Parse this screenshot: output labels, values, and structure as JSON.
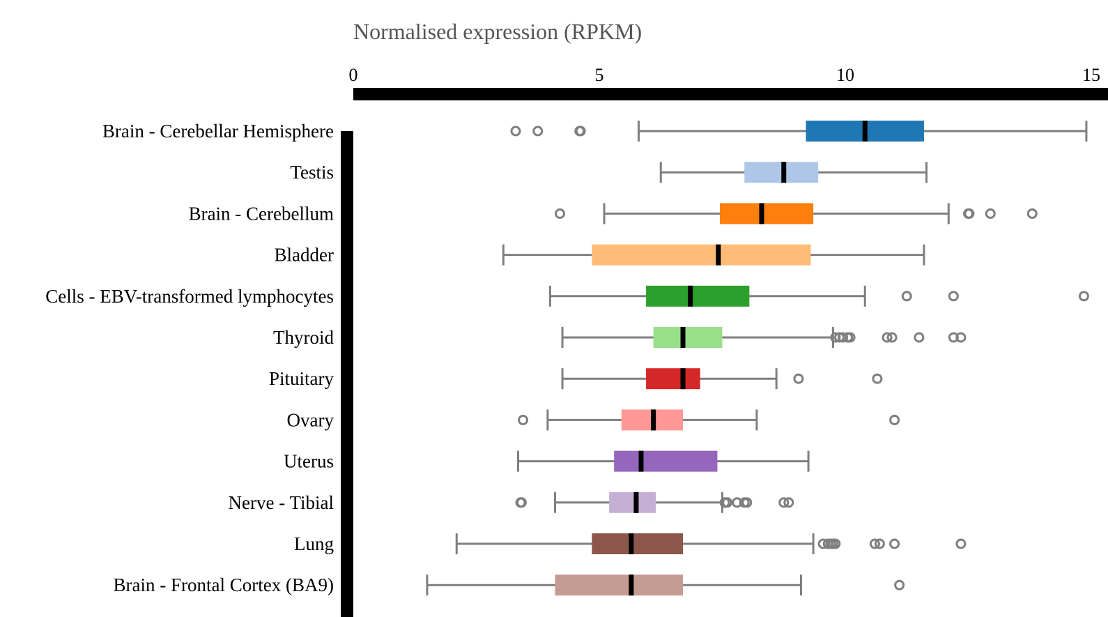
{
  "chart_data": {
    "type": "boxplot",
    "orientation": "horizontal",
    "title": "Normalised expression (RPKM)",
    "xlabel": "Normalised expression (RPKM)",
    "xlim": [
      0,
      15
    ],
    "x_ticks": [
      "0",
      "5",
      "10",
      "15"
    ],
    "x_tick_values": [
      0,
      5,
      10,
      15
    ],
    "axis_position": "top",
    "series": [
      {
        "name": "Brain - Cerebellar Hemisphere",
        "color": "#1f77b4",
        "whisker_low": 5.8,
        "q1": 9.2,
        "median": 10.4,
        "q3": 11.6,
        "whisker_high": 14.9,
        "outliers": [
          3.3,
          3.75,
          4.6,
          4.62
        ]
      },
      {
        "name": "Testis",
        "color": "#aec7e8",
        "whisker_low": 6.25,
        "q1": 7.95,
        "median": 8.75,
        "q3": 9.45,
        "whisker_high": 11.65,
        "outliers": []
      },
      {
        "name": "Brain - Cerebellum",
        "color": "#ff7f0e",
        "whisker_low": 5.1,
        "q1": 7.45,
        "median": 8.3,
        "q3": 9.35,
        "whisker_high": 12.1,
        "outliers": [
          4.2,
          12.5,
          12.52,
          12.95,
          13.8
        ]
      },
      {
        "name": "Bladder",
        "color": "#ffbb78",
        "whisker_low": 3.05,
        "q1": 4.85,
        "median": 7.42,
        "q3": 9.3,
        "whisker_high": 11.6,
        "outliers": []
      },
      {
        "name": "Cells - EBV-transformed lymphocytes",
        "color": "#2ca02c",
        "whisker_low": 4.0,
        "q1": 5.95,
        "median": 6.85,
        "q3": 8.05,
        "whisker_high": 10.4,
        "outliers": [
          11.25,
          12.2,
          14.85
        ]
      },
      {
        "name": "Thyroid",
        "color": "#98df8a",
        "whisker_low": 4.25,
        "q1": 6.1,
        "median": 6.7,
        "q3": 7.5,
        "whisker_high": 9.75,
        "outliers": [
          9.8,
          9.88,
          9.95,
          10.05,
          10.1,
          10.85,
          10.95,
          11.5,
          12.2,
          12.35
        ]
      },
      {
        "name": "Pituitary",
        "color": "#d62728",
        "whisker_low": 4.25,
        "q1": 5.95,
        "median": 6.7,
        "q3": 7.05,
        "whisker_high": 8.6,
        "outliers": [
          9.05,
          10.65
        ]
      },
      {
        "name": "Ovary",
        "color": "#ff9896",
        "whisker_low": 3.95,
        "q1": 5.45,
        "median": 6.1,
        "q3": 6.7,
        "whisker_high": 8.2,
        "outliers": [
          3.45,
          11.0
        ]
      },
      {
        "name": "Uterus",
        "color": "#9467bd",
        "whisker_low": 3.35,
        "q1": 5.3,
        "median": 5.85,
        "q3": 7.4,
        "whisker_high": 9.25,
        "outliers": []
      },
      {
        "name": "Nerve - Tibial",
        "color": "#c5b0d5",
        "whisker_low": 4.1,
        "q1": 5.2,
        "median": 5.75,
        "q3": 6.15,
        "whisker_high": 7.5,
        "outliers": [
          3.4,
          3.42,
          7.55,
          7.6,
          7.8,
          7.95,
          8.0,
          8.75,
          8.85
        ]
      },
      {
        "name": "Lung",
        "color": "#8c564b",
        "whisker_low": 2.1,
        "q1": 4.85,
        "median": 5.65,
        "q3": 6.7,
        "whisker_high": 9.35,
        "outliers": [
          9.55,
          9.65,
          9.7,
          9.75,
          9.8,
          10.6,
          10.7,
          11.0,
          12.35
        ]
      },
      {
        "name": "Brain - Frontal Cortex (BA9)",
        "color": "#c49c94",
        "whisker_low": 1.5,
        "q1": 4.1,
        "median": 5.65,
        "q3": 6.7,
        "whisker_high": 9.1,
        "outliers": [
          11.1
        ]
      }
    ]
  }
}
